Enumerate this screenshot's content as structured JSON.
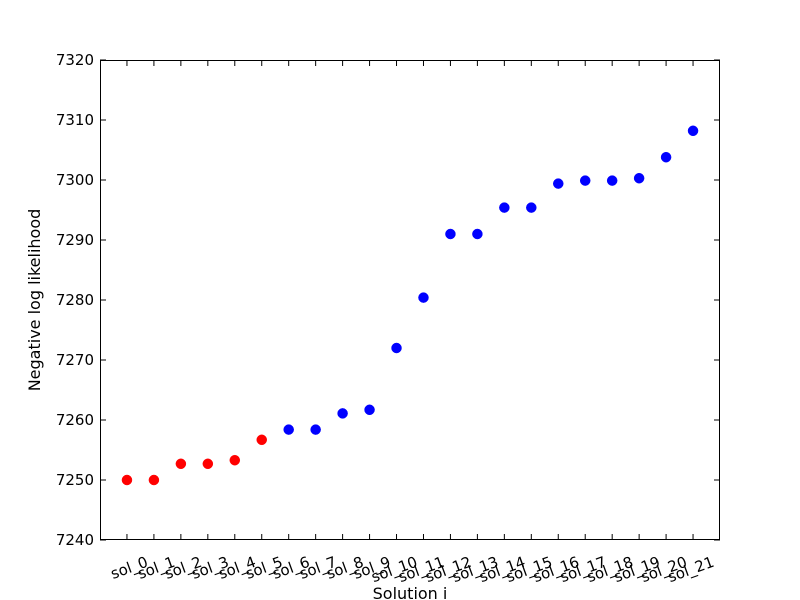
{
  "chart_data": {
    "type": "scatter",
    "title": "",
    "xlabel": "Solution i",
    "ylabel": "Negative log likelihood",
    "ylim": [
      7240,
      7320
    ],
    "yticks": [
      7240,
      7250,
      7260,
      7270,
      7280,
      7290,
      7300,
      7310,
      7320
    ],
    "grid": false,
    "categories": [
      "sol_0",
      "sol_1",
      "sol_2",
      "sol_3",
      "sol_4",
      "sol_5",
      "sol_6",
      "sol_7",
      "sol_8",
      "sol_9",
      "sol_10",
      "sol_11",
      "sol_12",
      "sol_13",
      "sol_14",
      "sol_15",
      "sol_16",
      "sol_17",
      "sol_18",
      "sol_19",
      "sol_20",
      "sol_21"
    ],
    "series": [
      {
        "color": "#ff0000",
        "indices": [
          0,
          1,
          2,
          3,
          4,
          5
        ],
        "values": [
          7250.0,
          7250.0,
          7252.7,
          7252.7,
          7253.3,
          7256.7
        ]
      },
      {
        "color": "#0000ff",
        "indices": [
          6,
          7,
          8,
          9,
          10,
          11,
          12,
          13,
          14,
          15,
          16,
          17,
          18,
          19,
          20,
          21
        ],
        "values": [
          7258.4,
          7258.4,
          7261.1,
          7261.7,
          7272.0,
          7280.4,
          7291.0,
          7291.0,
          7295.4,
          7295.4,
          7299.4,
          7299.9,
          7299.9,
          7300.3,
          7303.8,
          7308.2
        ]
      }
    ]
  }
}
